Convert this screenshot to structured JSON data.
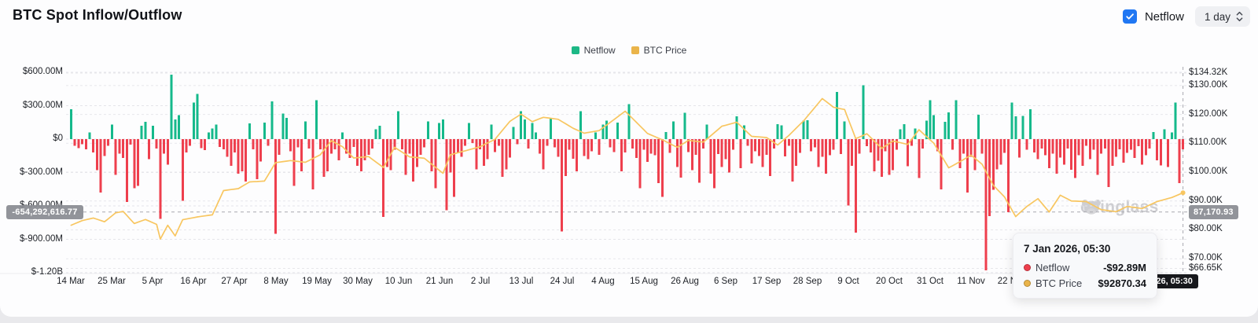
{
  "header": {
    "title": "BTC Spot Inflow/Outflow",
    "netflow_toggle_label": "Netflow",
    "netflow_toggle_checked": true,
    "interval_select": "1 day"
  },
  "legend": {
    "items": [
      {
        "label": "Netflow",
        "color": "#1db886"
      },
      {
        "label": "BTC Price",
        "color": "#eab44a"
      }
    ]
  },
  "watermark_text": "coinglass",
  "crosshair": {
    "netflow_axis_value": "-654,292,616.77",
    "price_axis_value": "87,170.93",
    "date_value": "7 Jan 2026, 05:30",
    "netflow_value_m": -654.29
  },
  "tooltip": {
    "title": "7 Jan 2026, 05:30",
    "rows": [
      {
        "label": "Netflow",
        "value": "-$92.89M",
        "dot_color": "#ee3f4d"
      },
      {
        "label": "BTC Price",
        "value": "$92870.34",
        "dot_color": "#eab44a"
      }
    ]
  },
  "chart_data": {
    "type": "bar+line",
    "title": "BTC Spot Inflow/Outflow",
    "start_date": "14 Mar",
    "end_date": "7 Jan 2026, 05:30",
    "x_tick_labels": [
      "14 Mar",
      "25 Mar",
      "5 Apr",
      "16 Apr",
      "27 Apr",
      "8 May",
      "19 May",
      "30 May",
      "10 Jun",
      "21 Jun",
      "2 Jul",
      "13 Jul",
      "24 Jul",
      "4 Aug",
      "15 Aug",
      "26 Aug",
      "6 Sep",
      "17 Sep",
      "28 Sep",
      "9 Oct",
      "20 Oct",
      "31 Oct",
      "11 Nov",
      "22 Nov"
    ],
    "x_tick_day_interval": 11,
    "left_axis": {
      "range_m": [
        -1200,
        600
      ],
      "ticks": [
        {
          "label": "$600.00M",
          "value": 600
        },
        {
          "label": "$300.00M",
          "value": 300
        },
        {
          "label": "$0",
          "value": 0
        },
        {
          "label": "$-300.00M",
          "value": -300
        },
        {
          "label": "$-600.00M",
          "value": -600
        },
        {
          "label": "$-900.00M",
          "value": -900
        },
        {
          "label": "$-1.20B",
          "value": -1200
        }
      ]
    },
    "right_axis": {
      "range": [
        66650,
        134320
      ],
      "ticks": [
        {
          "label": "$134.32K",
          "value": 134320
        },
        {
          "label": "$130.00K",
          "value": 130000
        },
        {
          "label": "$120.00K",
          "value": 120000
        },
        {
          "label": "$110.00K",
          "value": 110000
        },
        {
          "label": "$100.00K",
          "value": 100000
        },
        {
          "label": "$90.00K",
          "value": 90000
        },
        {
          "label": "$80.00K",
          "value": 80000
        },
        {
          "label": "$70.00K",
          "value": 70000
        },
        {
          "label": "$66.65K",
          "value": 66650
        }
      ]
    },
    "colors": {
      "positive": "#15b98b",
      "negative": "#ee3f4d",
      "price": "#f8c660"
    },
    "bar_series": {
      "name": "Netflow",
      "unit": "USD millions (approx, daily)",
      "values": [
        270,
        -60,
        -80,
        -45,
        -90,
        60,
        -120,
        -280,
        -480,
        -150,
        -60,
        130,
        -320,
        -130,
        -170,
        -565,
        -50,
        -440,
        -420,
        120,
        155,
        -180,
        120,
        -85,
        -715,
        -130,
        -230,
        580,
        175,
        215,
        -555,
        -120,
        -60,
        330,
        405,
        -80,
        -100,
        60,
        95,
        130,
        -70,
        -90,
        -160,
        -240,
        -120,
        -310,
        -290,
        -380,
        140,
        -90,
        -360,
        -200,
        150,
        -60,
        340,
        -850,
        -140,
        230,
        190,
        -110,
        -420,
        -75,
        -290,
        160,
        -85,
        -450,
        350,
        -90,
        -340,
        -290,
        -130,
        -90,
        -190,
        60,
        -130,
        -170,
        -70,
        -240,
        -290,
        -190,
        -140,
        -85,
        90,
        120,
        -700,
        -250,
        -280,
        -95,
        250,
        -90,
        -320,
        -130,
        -380,
        -250,
        -140,
        -75,
        160,
        -290,
        -440,
        145,
        175,
        -640,
        -300,
        -520,
        -125,
        -160,
        -60,
        145,
        -35,
        -270,
        -90,
        -240,
        -180,
        130,
        -115,
        -60,
        -340,
        -270,
        -165,
        110,
        -45,
        250,
        175,
        -85,
        145,
        60,
        -130,
        -270,
        -60,
        185,
        -75,
        -160,
        -830,
        -330,
        -95,
        -175,
        -290,
        250,
        -150,
        -180,
        -110,
        60,
        -140,
        130,
        165,
        -75,
        -115,
        150,
        -290,
        -120,
        315,
        -85,
        -170,
        -440,
        -95,
        -205,
        -130,
        -145,
        -395,
        -520,
        65,
        -125,
        160,
        -250,
        -345,
        235,
        -115,
        -280,
        -140,
        -390,
        -85,
        130,
        -310,
        -440,
        -135,
        -250,
        -180,
        -300,
        -95,
        205,
        -260,
        125,
        -60,
        -220,
        -110,
        -150,
        -250,
        -140,
        -330,
        -85,
        135,
        125,
        -155,
        -60,
        -380,
        -240,
        -125,
        165,
        170,
        -110,
        -75,
        -250,
        -160,
        -310,
        -145,
        -95,
        425,
        -135,
        160,
        -595,
        -240,
        -840,
        -130,
        485,
        -65,
        -120,
        -290,
        -195,
        -340,
        -110,
        -320,
        -280,
        -95,
        90,
        135,
        -245,
        -60,
        95,
        -350,
        -85,
        165,
        350,
        215,
        -110,
        -450,
        155,
        240,
        -95,
        350,
        -260,
        -130,
        -480,
        -160,
        -280,
        220,
        -130,
        -1180,
        -690,
        -455,
        -270,
        -230,
        -125,
        -655,
        330,
        205,
        -165,
        210,
        -95,
        270,
        -120,
        -180,
        -85,
        -145,
        -260,
        -130,
        -310,
        -165,
        -230,
        -85,
        -275,
        -350,
        -145,
        -240,
        -60,
        -180,
        -95,
        -320,
        -130,
        -85,
        -430,
        -240,
        -160,
        -90,
        -210,
        -125,
        -95,
        -170,
        -65,
        -230,
        -145,
        -85,
        65,
        -190,
        -235,
        90,
        -250,
        60,
        330,
        -395,
        -92.89
      ]
    },
    "line_series": {
      "name": "BTC Price",
      "unit": "USD",
      "anchors": [
        [
          0,
          81600
        ],
        [
          3,
          83200
        ],
        [
          6,
          84100
        ],
        [
          9,
          82800
        ],
        [
          12,
          85900
        ],
        [
          14,
          86400
        ],
        [
          17,
          82200
        ],
        [
          20,
          83600
        ],
        [
          23,
          81900
        ],
        [
          24,
          76800
        ],
        [
          26,
          81600
        ],
        [
          28,
          77900
        ],
        [
          30,
          83500
        ],
        [
          34,
          84500
        ],
        [
          38,
          85200
        ],
        [
          41,
          93600
        ],
        [
          45,
          94300
        ],
        [
          48,
          96600
        ],
        [
          52,
          96900
        ],
        [
          55,
          103300
        ],
        [
          59,
          104000
        ],
        [
          63,
          103400
        ],
        [
          67,
          106000
        ],
        [
          70,
          110900
        ],
        [
          73,
          108800
        ],
        [
          76,
          104900
        ],
        [
          80,
          105400
        ],
        [
          84,
          101600
        ],
        [
          87,
          108600
        ],
        [
          91,
          105300
        ],
        [
          95,
          104800
        ],
        [
          100,
          99600
        ],
        [
          102,
          106000
        ],
        [
          106,
          107400
        ],
        [
          110,
          108800
        ],
        [
          114,
          111400
        ],
        [
          118,
          117600
        ],
        [
          121,
          120100
        ],
        [
          124,
          117500
        ],
        [
          127,
          119000
        ],
        [
          131,
          118300
        ],
        [
          135,
          115200
        ],
        [
          138,
          113500
        ],
        [
          142,
          114400
        ],
        [
          146,
          118200
        ],
        [
          149,
          121100
        ],
        [
          152,
          117300
        ],
        [
          155,
          113400
        ],
        [
          159,
          111200
        ],
        [
          163,
          108600
        ],
        [
          166,
          111000
        ],
        [
          170,
          110400
        ],
        [
          175,
          115900
        ],
        [
          179,
          117300
        ],
        [
          183,
          112400
        ],
        [
          187,
          112000
        ],
        [
          190,
          109400
        ],
        [
          193,
          112700
        ],
        [
          197,
          117800
        ],
        [
          202,
          125500
        ],
        [
          205,
          122500
        ],
        [
          208,
          121700
        ],
        [
          211,
          111600
        ],
        [
          214,
          113300
        ],
        [
          218,
          108200
        ],
        [
          221,
          110800
        ],
        [
          225,
          109600
        ],
        [
          228,
          114700
        ],
        [
          232,
          110000
        ],
        [
          236,
          101500
        ],
        [
          239,
          103600
        ],
        [
          242,
          105900
        ],
        [
          245,
          102700
        ],
        [
          248,
          95400
        ],
        [
          251,
          91400
        ],
        [
          254,
          84600
        ],
        [
          257,
          88100
        ],
        [
          260,
          90800
        ],
        [
          263,
          86200
        ],
        [
          266,
          92000
        ],
        [
          269,
          90000
        ],
        [
          273,
          89800
        ],
        [
          277,
          87000
        ],
        [
          281,
          86300
        ],
        [
          284,
          88100
        ],
        [
          288,
          87400
        ],
        [
          292,
          89800
        ],
        [
          296,
          91200
        ],
        [
          299,
          92870.34
        ]
      ]
    }
  }
}
